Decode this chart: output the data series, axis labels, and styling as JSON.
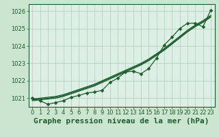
{
  "background_color": "#cce5d0",
  "plot_bg_color": "#ddeee5",
  "grid_color": "#aaccbb",
  "line_color": "#1a5c2a",
  "title": "Graphe pression niveau de la mer (hPa)",
  "ylim": [
    1020.5,
    1026.4
  ],
  "xlim": [
    -0.5,
    23.5
  ],
  "yticks": [
    1021,
    1022,
    1023,
    1024,
    1025,
    1026
  ],
  "xticks": [
    0,
    1,
    2,
    3,
    4,
    5,
    6,
    7,
    8,
    9,
    10,
    11,
    12,
    13,
    14,
    15,
    16,
    17,
    18,
    19,
    20,
    21,
    22,
    23
  ],
  "smooth_lines": [
    [
      1020.95,
      1021.0,
      1021.05,
      1021.1,
      1021.2,
      1021.35,
      1021.5,
      1021.65,
      1021.8,
      1022.0,
      1022.2,
      1022.4,
      1022.6,
      1022.8,
      1023.0,
      1023.25,
      1023.55,
      1023.85,
      1024.2,
      1024.55,
      1024.9,
      1025.2,
      1025.45,
      1025.75
    ],
    [
      1020.9,
      1020.95,
      1021.0,
      1021.05,
      1021.15,
      1021.3,
      1021.45,
      1021.6,
      1021.75,
      1021.95,
      1022.15,
      1022.35,
      1022.55,
      1022.75,
      1022.95,
      1023.2,
      1023.5,
      1023.8,
      1024.15,
      1024.5,
      1024.85,
      1025.15,
      1025.4,
      1025.7
    ],
    [
      1020.85,
      1020.9,
      1020.95,
      1021.0,
      1021.1,
      1021.25,
      1021.4,
      1021.55,
      1021.7,
      1021.9,
      1022.1,
      1022.3,
      1022.5,
      1022.7,
      1022.9,
      1023.15,
      1023.45,
      1023.75,
      1024.1,
      1024.45,
      1024.8,
      1025.1,
      1025.35,
      1025.65
    ]
  ],
  "marker_line": [
    1021.0,
    1020.85,
    1020.65,
    1020.75,
    1020.85,
    1021.05,
    1021.15,
    1021.3,
    1021.35,
    1021.45,
    1021.9,
    1022.15,
    1022.5,
    1022.55,
    1022.4,
    1022.7,
    1023.3,
    1024.05,
    1024.5,
    1025.0,
    1025.3,
    1025.3,
    1025.1,
    1026.05
  ],
  "marker": "D",
  "marker_size": 2.5,
  "line_width": 0.9,
  "title_fontsize": 8,
  "tick_fontsize": 6
}
